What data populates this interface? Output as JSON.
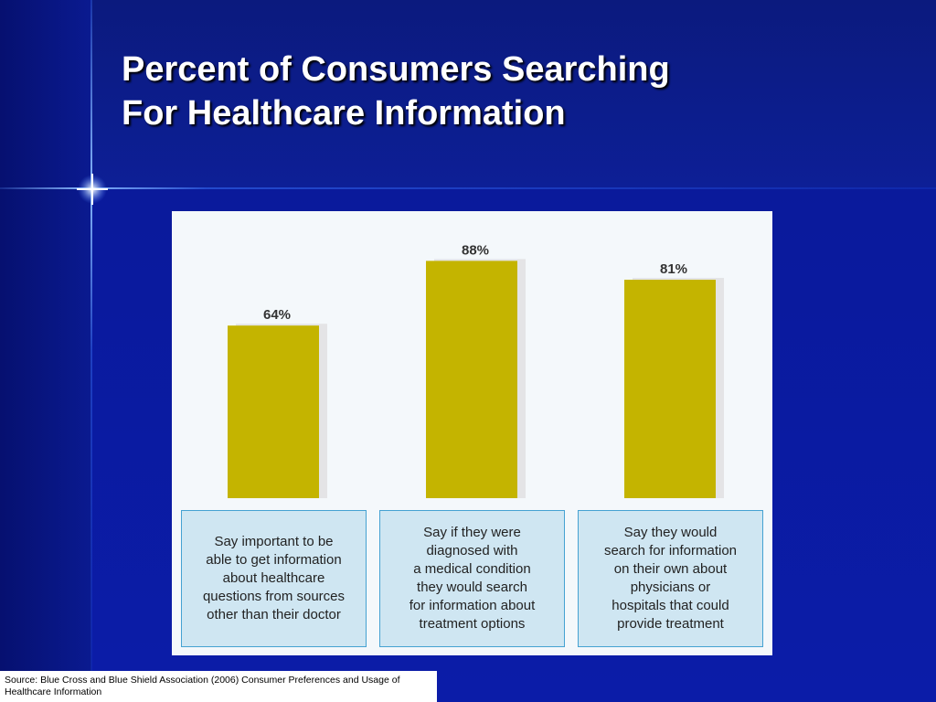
{
  "slide": {
    "title_lines": [
      "Percent of Consumers Searching",
      "For Healthcare Information"
    ],
    "source": "Source: Blue Cross and Blue Shield Association (2006) Consumer Preferences and Usage of Healthcare Information"
  },
  "colors": {
    "bar": "#c4b400",
    "bar_shadow": "#e4e4e6",
    "panel": "#f4f8fb",
    "box_fill": "#cfe6f2",
    "box_border": "#45a2d2",
    "slide_bg": "#0a1a9a"
  },
  "chart_data": {
    "type": "bar",
    "categories": [
      "Say important to be able to get information about healthcare questions from sources other than their doctor",
      "Say if they were diagnosed with a medical condition they would search for information about treatment options",
      "Say they would search for information on their own about physicians or hospitals that could provide treatment"
    ],
    "category_lines": [
      [
        "Say important to be",
        "able to get information",
        "about healthcare",
        "questions from sources",
        "other than their doctor"
      ],
      [
        "Say if they were",
        "diagnosed with",
        "a medical condition",
        "they would search",
        "for information about",
        "treatment options"
      ],
      [
        "Say they would",
        "search for information",
        "on their own about",
        "physicians or",
        "hospitals that could",
        "provide treatment"
      ]
    ],
    "values": [
      64,
      88,
      81
    ],
    "value_labels": [
      "64%",
      "88%",
      "81%"
    ],
    "unit": "%",
    "ylim": [
      0,
      100
    ],
    "grid": false,
    "legend": "none"
  }
}
